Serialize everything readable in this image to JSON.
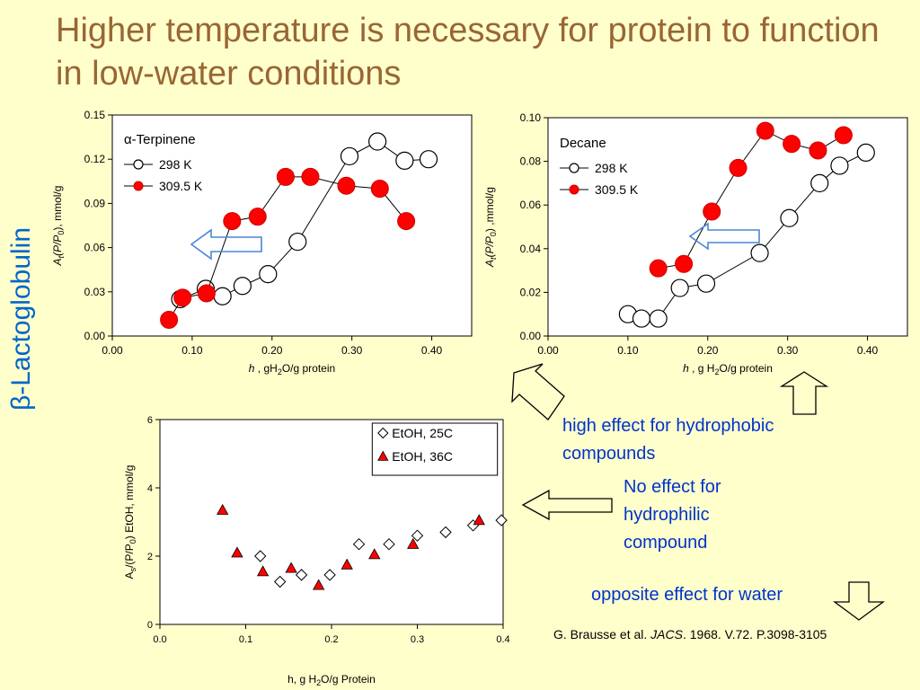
{
  "slide": {
    "title": "Higher temperature is necessary for protein to function in low-water conditions",
    "side_label": "β-Lactoglobulin",
    "notes": {
      "hydrophobic": "high effect for hydrophobic compounds",
      "hydrophilic": "No effect for hydrophilic compound",
      "water": "opposite effect for water"
    },
    "citation": {
      "authors": "G. Brausse et al. ",
      "journal": "JACS",
      "rest": ". 1968. V.72. P.3098-3105"
    }
  },
  "colors": {
    "title": "#996633",
    "side_label": "#0066cc",
    "notes": "#0033cc",
    "background": "#ffffcc",
    "red_marker": "#ff0000",
    "red_outline": "#cc0000",
    "arrow_blue": "#4a86d6"
  },
  "chart_data": [
    {
      "id": "terpinene",
      "type": "line",
      "label": "α-Terpinene",
      "xlabel": {
        "italic": "h",
        "pre": " , gH",
        "sub": "2",
        "post": "O/g protein"
      },
      "ylabel": {
        "italic1": "A",
        "sub1": "t",
        "italic2": "(P/P",
        "sub2": "0",
        "post": "), mmol/g"
      },
      "xlim": [
        0,
        0.45
      ],
      "ylim": [
        0,
        0.15
      ],
      "xticks": [
        0,
        0.1,
        0.2,
        0.3,
        0.4
      ],
      "xtick_labels": [
        "0.00",
        "0.10",
        "0.20",
        "0.30",
        "0.40"
      ],
      "yticks": [
        0,
        0.03,
        0.06,
        0.09,
        0.12,
        0.15
      ],
      "ytick_labels": [
        "0.00",
        "0.03",
        "0.06",
        "0.09",
        "0.12",
        "0.15"
      ],
      "grid": false,
      "legend_position": "top-left",
      "series": [
        {
          "name": "298 K",
          "marker": "open-circle",
          "x": [
            0.085,
            0.117,
            0.138,
            0.163,
            0.195,
            0.232,
            0.297,
            0.332,
            0.366,
            0.396
          ],
          "y": [
            0.025,
            0.032,
            0.027,
            0.034,
            0.042,
            0.064,
            0.122,
            0.132,
            0.119,
            0.12
          ]
        },
        {
          "name": "309.5 K",
          "marker": "filled-circle",
          "x": [
            0.071,
            0.088,
            0.118,
            0.15,
            0.182,
            0.217,
            0.248,
            0.293,
            0.335,
            0.368
          ],
          "y": [
            0.011,
            0.026,
            0.029,
            0.078,
            0.081,
            0.108,
            0.108,
            0.102,
            0.1,
            0.078
          ]
        }
      ]
    },
    {
      "id": "decane",
      "type": "line",
      "label": "Decane",
      "xlabel": {
        "italic": "h",
        "pre": " , g H",
        "sub": "2",
        "post": "O/g protein"
      },
      "ylabel": {
        "italic1": "A",
        "sub1": "t",
        "italic2": "(P/P",
        "sub2": "0",
        "post": ") ,mmol/g"
      },
      "xlim": [
        0,
        0.45
      ],
      "ylim": [
        0,
        0.1
      ],
      "xticks": [
        0,
        0.1,
        0.2,
        0.3,
        0.4
      ],
      "xtick_labels": [
        "0.00",
        "0.10",
        "0.20",
        "0.30",
        "0.40"
      ],
      "yticks": [
        0,
        0.02,
        0.04,
        0.06,
        0.08,
        0.1
      ],
      "ytick_labels": [
        "0.00",
        "0.02",
        "0.04",
        "0.06",
        "0.08",
        "0.10"
      ],
      "grid": false,
      "legend_position": "top-left",
      "series": [
        {
          "name": "298 K",
          "marker": "open-circle",
          "x": [
            0.1,
            0.117,
            0.138,
            0.165,
            0.198,
            0.265,
            0.302,
            0.34,
            0.365,
            0.398
          ],
          "y": [
            0.01,
            0.008,
            0.008,
            0.022,
            0.024,
            0.038,
            0.054,
            0.07,
            0.078,
            0.084
          ]
        },
        {
          "name": "309.5 K",
          "marker": "filled-circle",
          "x": [
            0.138,
            0.17,
            0.205,
            0.238,
            0.272,
            0.305,
            0.338,
            0.37
          ],
          "y": [
            0.031,
            0.033,
            0.057,
            0.077,
            0.094,
            0.088,
            0.085,
            0.092
          ]
        }
      ]
    },
    {
      "id": "ethanol",
      "type": "scatter",
      "xlabel": {
        "pre": "h, g H",
        "sub": "2",
        "post": "O/g Protein"
      },
      "ylabel": {
        "a": "A",
        "sub1": "s",
        "mid": "/(P/P",
        "sub2": "0",
        "post": ") EtOH, mmol/g"
      },
      "xlim": [
        0,
        0.4
      ],
      "ylim": [
        0,
        6
      ],
      "xticks": [
        0,
        0.1,
        0.2,
        0.3,
        0.4
      ],
      "xtick_labels": [
        "0.0",
        "0.1",
        "0.2",
        "0.3",
        "0.4"
      ],
      "yticks": [
        0,
        2,
        4,
        6
      ],
      "ytick_labels": [
        "0",
        "2",
        "4",
        "6"
      ],
      "grid": false,
      "legend_position": "top-right",
      "series": [
        {
          "name": "EtOH, 25C",
          "marker": "open-diamond",
          "x": [
            0.117,
            0.14,
            0.165,
            0.198,
            0.232,
            0.267,
            0.3,
            0.333,
            0.365,
            0.398
          ],
          "y": [
            2.0,
            1.25,
            1.45,
            1.45,
            2.35,
            2.35,
            2.6,
            2.7,
            2.9,
            3.05
          ]
        },
        {
          "name": "EtOH, 36C",
          "marker": "filled-triangle",
          "x": [
            0.073,
            0.09,
            0.12,
            0.153,
            0.185,
            0.218,
            0.25,
            0.295,
            0.372
          ],
          "y": [
            3.35,
            2.1,
            1.55,
            1.65,
            1.15,
            1.75,
            2.05,
            2.35,
            3.05
          ]
        }
      ]
    }
  ]
}
